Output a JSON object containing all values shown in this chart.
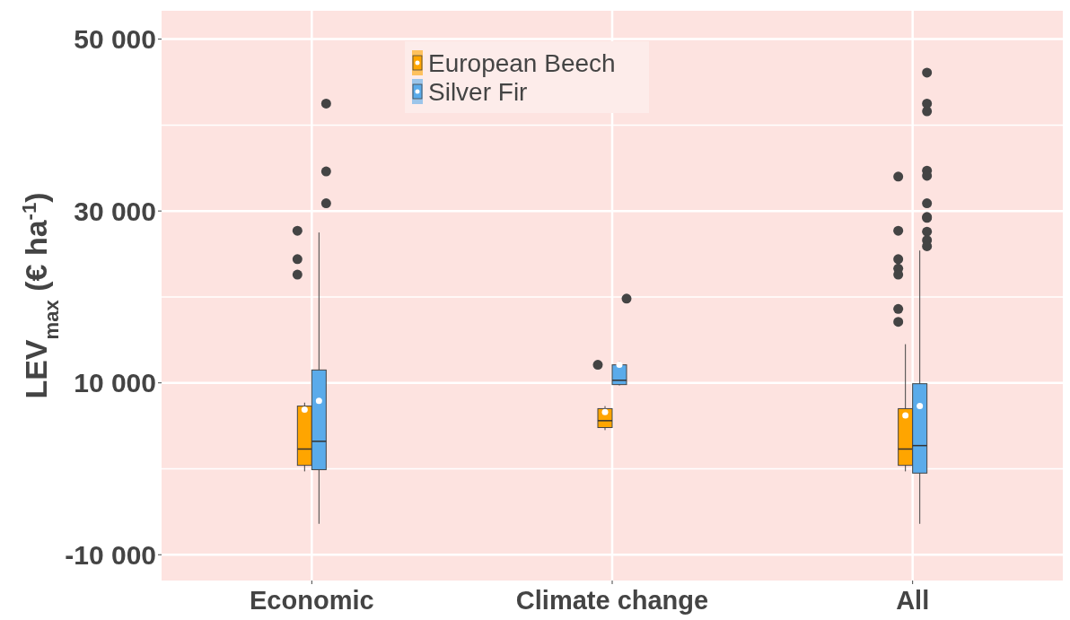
{
  "chart_data": {
    "type": "box",
    "ylabel": "LEV$_{max}$ (€ ha$^{-1}$)",
    "categories": [
      "Economic",
      "Climate change",
      "All"
    ],
    "ylim": [
      -13000,
      53300
    ],
    "yticks": [
      {
        "value": -10000,
        "label": "-10 000"
      },
      {
        "value": 0,
        "label": null
      },
      {
        "value": 10000,
        "label": "10 000"
      },
      {
        "value": 20000,
        "label": null
      },
      {
        "value": 30000,
        "label": "30 000"
      },
      {
        "value": 40000,
        "label": null
      },
      {
        "value": 50000,
        "label": "50 000"
      }
    ],
    "grid": true,
    "legend": "top",
    "series": [
      {
        "name": "European Beech",
        "color": "#ffa500",
        "boxes": [
          {
            "low": -300,
            "q1": 400,
            "median": 2300,
            "q3": 7300,
            "high": 7700,
            "mean": 6900,
            "outliers": [
              27700,
              24400,
              22600
            ]
          },
          {
            "low": 4500,
            "q1": 4800,
            "median": 5600,
            "q3": 7000,
            "high": 7300,
            "mean": 6600,
            "outliers": [
              12100
            ]
          },
          {
            "low": -300,
            "q1": 400,
            "median": 2300,
            "q3": 7000,
            "high": 14500,
            "mean": 6200,
            "outliers": [
              34000,
              27700,
              24400,
              23300,
              22600,
              18600,
              17100
            ]
          }
        ]
      },
      {
        "name": "Silver Fir",
        "color": "#5aabea",
        "boxes": [
          {
            "low": -6400,
            "q1": -100,
            "median": 3200,
            "q3": 11500,
            "high": 27500,
            "mean": 7900,
            "outliers": [
              42500,
              34600,
              30900
            ]
          },
          {
            "low": 9700,
            "q1": 9800,
            "median": 10300,
            "q3": 12100,
            "high": 12500,
            "mean": 12100,
            "outliers": [
              19800
            ]
          },
          {
            "low": -6400,
            "q1": -500,
            "median": 2700,
            "q3": 9900,
            "high": 25400,
            "mean": 7300,
            "outliers": [
              46100,
              42500,
              41600,
              34700,
              34100,
              30900,
              29300,
              29200,
              27600,
              26600,
              25900
            ]
          }
        ]
      }
    ]
  }
}
